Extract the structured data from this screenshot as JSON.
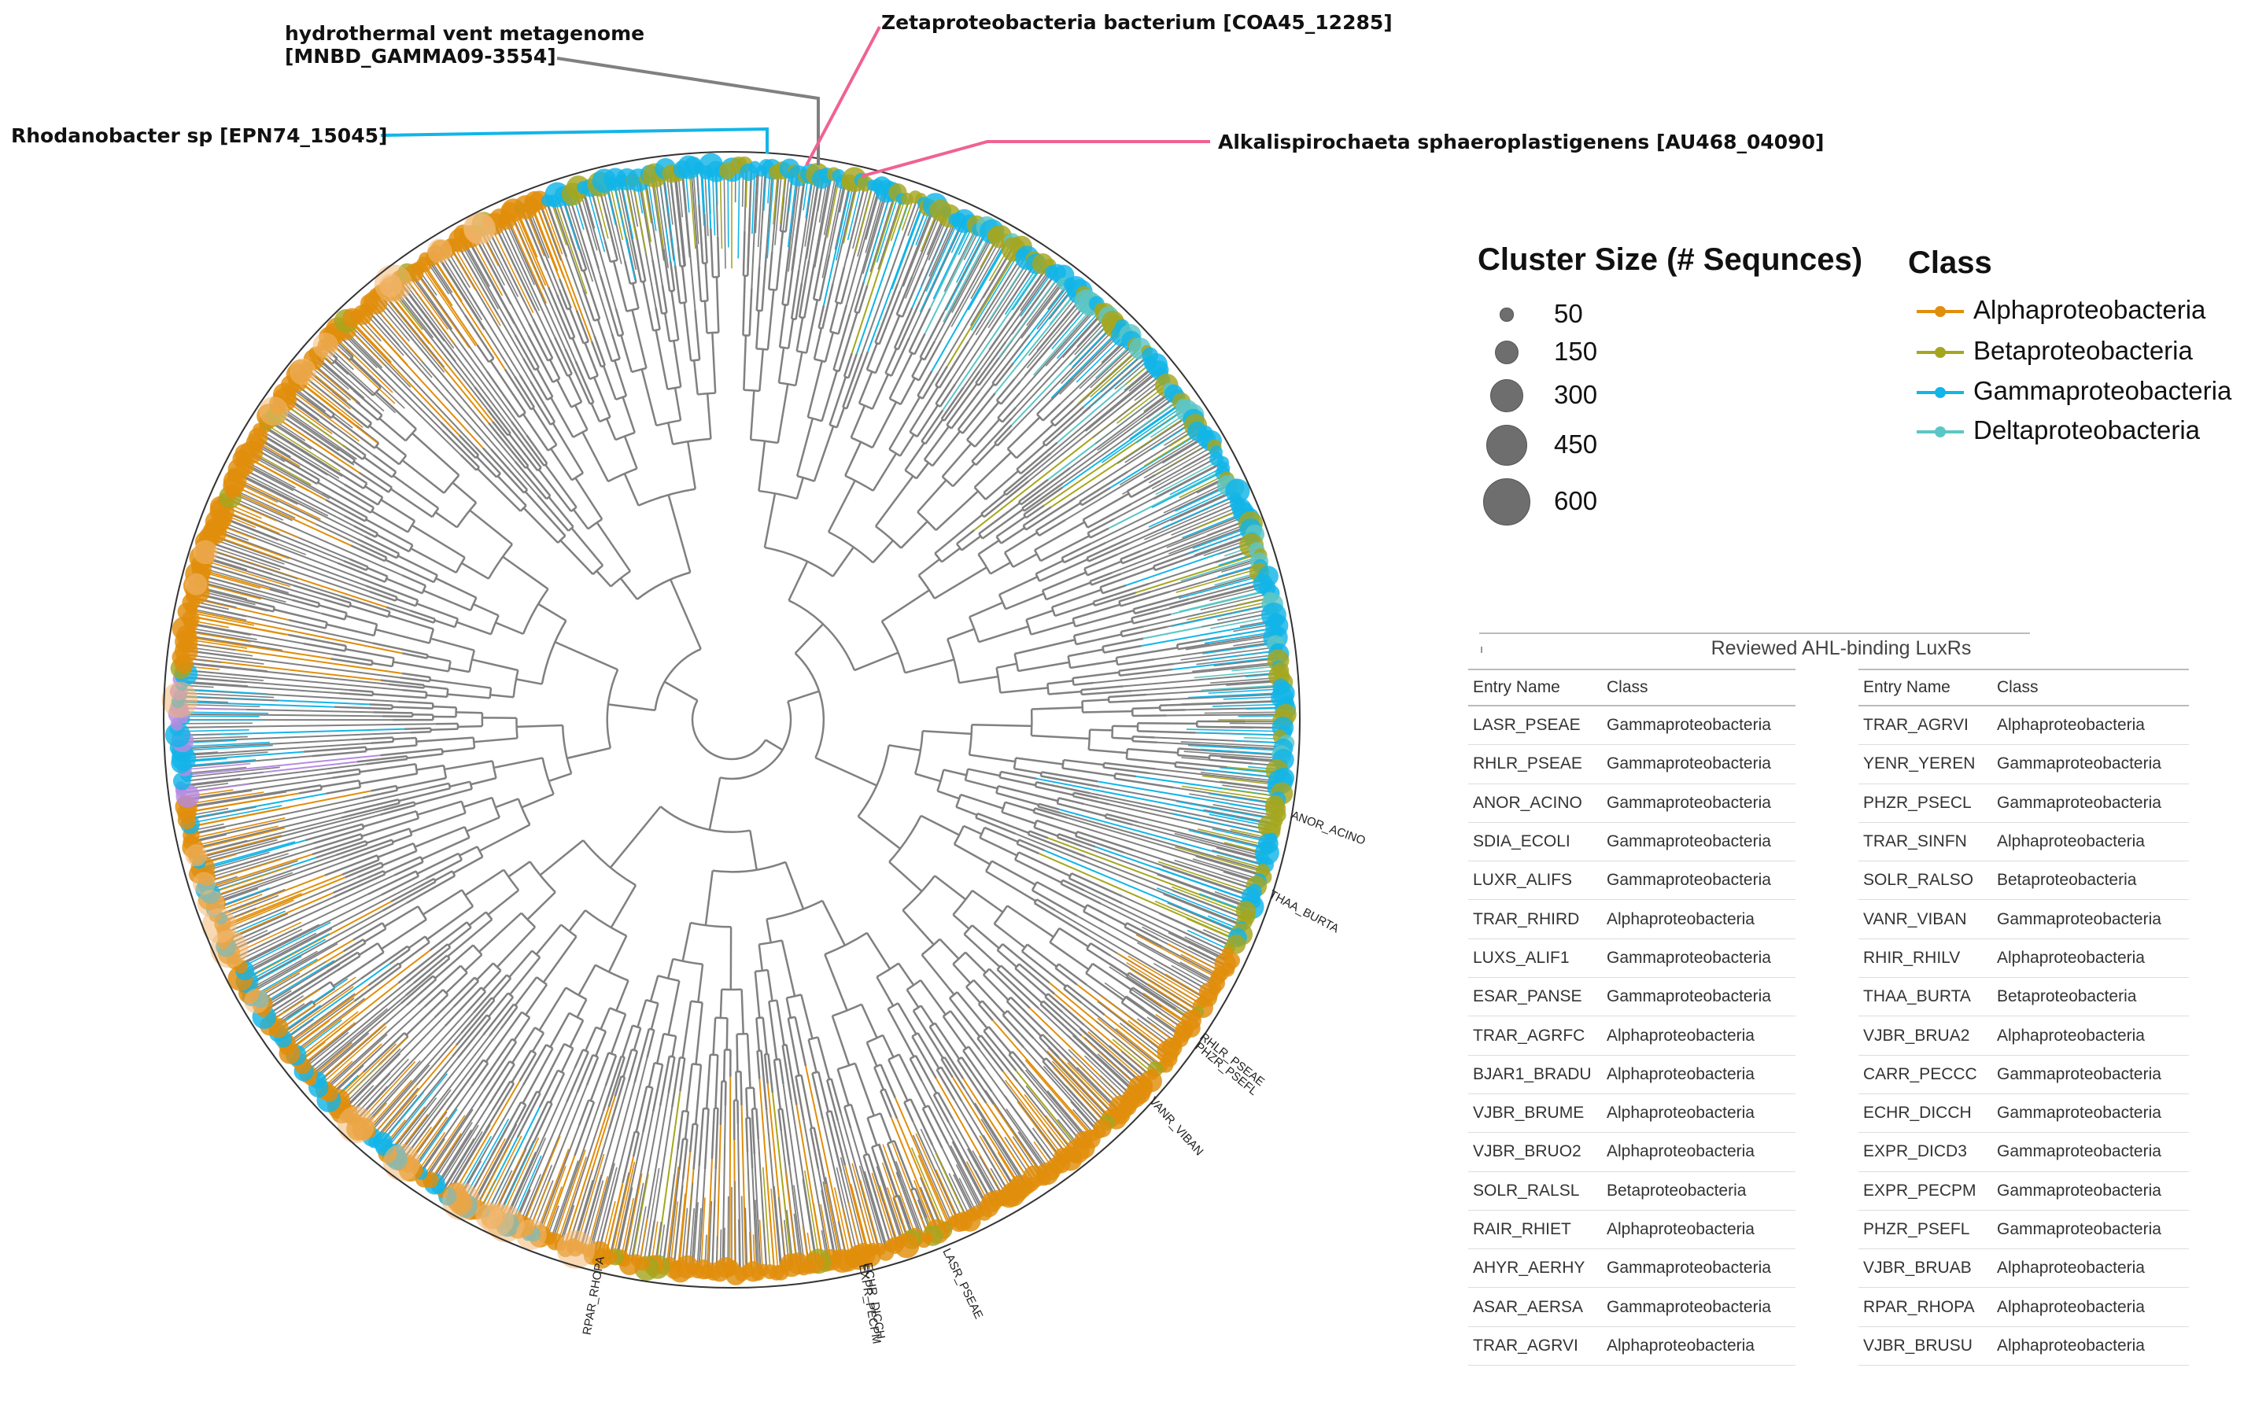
{
  "colors": {
    "alpha": "#E08E0B",
    "beta": "#A5A61F",
    "gamma": "#12B5E8",
    "delta": "#5BC6C6",
    "branch": "#808080",
    "highlight_pink": "#F06292",
    "highlight_purple": "#B68BE0",
    "callout_gray": "#808080",
    "callout_blue": "#12B5E8"
  },
  "callouts": {
    "hydrothermal_line1": "hydrothermal vent metagenome",
    "hydrothermal_line2": "[MNBD_GAMMA09-3554]",
    "zeta": "Zetaproteobacteria bacterium [COA45_12285]",
    "rhodanobacter": "Rhodanobacter sp [EPN74_15045]",
    "alkali": "Alkalispirochaeta sphaeroplastigenens [AU468_04090]"
  },
  "tip_labels": [
    "ANOR_ACINO",
    "THAA_BURTA",
    "RHLR_PSEAE",
    "PHZR_PSEFL",
    "VANR_VIBAN",
    "LASR_PSEAE",
    "ECHR_DICCH",
    "EXPR_PECPM",
    "RPAR_RHOPA"
  ],
  "size_legend": {
    "title": "Cluster Size (# Sequnces)",
    "items": [
      {
        "label": "50",
        "value": 50
      },
      {
        "label": "150",
        "value": 150
      },
      {
        "label": "300",
        "value": 300
      },
      {
        "label": "450",
        "value": 450
      },
      {
        "label": "600",
        "value": 600
      }
    ]
  },
  "class_legend": {
    "title": "Class",
    "items": [
      {
        "label": "Alphaproteobacteria",
        "color": "#E08E0B"
      },
      {
        "label": "Betaproteobacteria",
        "color": "#A5A61F"
      },
      {
        "label": "Gammaproteobacteria",
        "color": "#12B5E8"
      },
      {
        "label": "Deltaproteobacteria",
        "color": "#5BC6C6"
      }
    ]
  },
  "table": {
    "title": "Reviewed AHL-binding LuxRs",
    "col_entry": "Entry Name",
    "col_class": "Class",
    "left": [
      [
        "LASR_PSEAE",
        "Gammaproteobacteria"
      ],
      [
        "RHLR_PSEAE",
        "Gammaproteobacteria"
      ],
      [
        "ANOR_ACINO",
        "Gammaproteobacteria"
      ],
      [
        "SDIA_ECOLI",
        "Gammaproteobacteria"
      ],
      [
        "LUXR_ALIFS",
        "Gammaproteobacteria"
      ],
      [
        "TRAR_RHIRD",
        "Alphaproteobacteria"
      ],
      [
        "LUXS_ALIF1",
        "Gammaproteobacteria"
      ],
      [
        "ESAR_PANSE",
        "Gammaproteobacteria"
      ],
      [
        "TRAR_AGRFC",
        "Alphaproteobacteria"
      ],
      [
        "BJAR1_BRADU",
        "Alphaproteobacteria"
      ],
      [
        "VJBR_BRUME",
        "Alphaproteobacteria"
      ],
      [
        "VJBR_BRUO2",
        "Alphaproteobacteria"
      ],
      [
        "SOLR_RALSL",
        "Betaproteobacteria"
      ],
      [
        "RAIR_RHIET",
        "Alphaproteobacteria"
      ],
      [
        "AHYR_AERHY",
        "Gammaproteobacteria"
      ],
      [
        "ASAR_AERSA",
        "Gammaproteobacteria"
      ],
      [
        "TRAR_AGRVI",
        "Alphaproteobacteria"
      ]
    ],
    "right": [
      [
        "TRAR_AGRVI",
        "Alphaproteobacteria"
      ],
      [
        "YENR_YEREN",
        "Gammaproteobacteria"
      ],
      [
        "PHZR_PSECL",
        "Gammaproteobacteria"
      ],
      [
        "TRAR_SINFN",
        "Alphaproteobacteria"
      ],
      [
        "SOLR_RALSO",
        "Betaproteobacteria"
      ],
      [
        "VANR_VIBAN",
        "Gammaproteobacteria"
      ],
      [
        "RHIR_RHILV",
        "Alphaproteobacteria"
      ],
      [
        "THAA_BURTA",
        "Betaproteobacteria"
      ],
      [
        "VJBR_BRUA2",
        "Alphaproteobacteria"
      ],
      [
        "CARR_PECCC",
        "Gammaproteobacteria"
      ],
      [
        "ECHR_DICCH",
        "Gammaproteobacteria"
      ],
      [
        "EXPR_DICD3",
        "Gammaproteobacteria"
      ],
      [
        "EXPR_PECPM",
        "Gammaproteobacteria"
      ],
      [
        "PHZR_PSEFL",
        "Gammaproteobacteria"
      ],
      [
        "VJBR_BRUAB",
        "Alphaproteobacteria"
      ],
      [
        "RPAR_RHOPA",
        "Alphaproteobacteria"
      ],
      [
        "VJBR_BRUSU",
        "Alphaproteobacteria"
      ]
    ]
  }
}
